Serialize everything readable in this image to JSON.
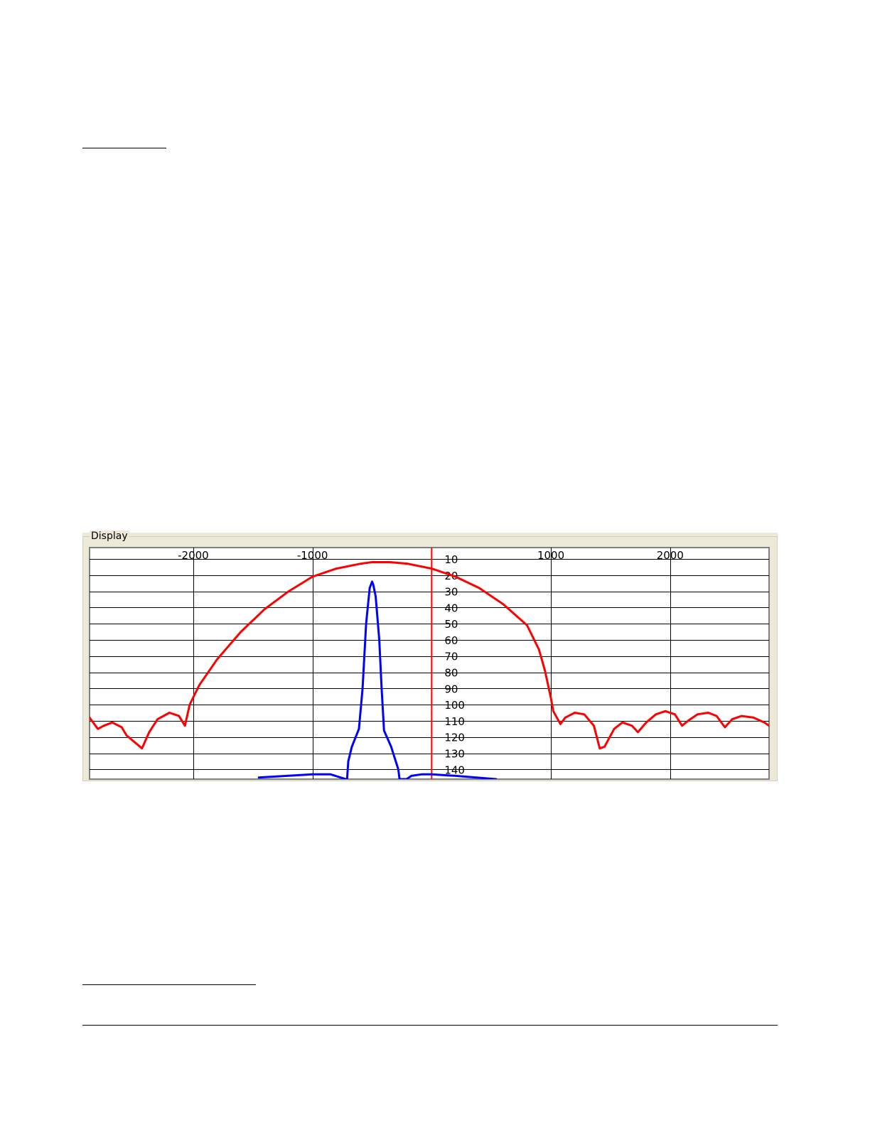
{
  "panel": {
    "legend": "Display"
  },
  "chart_data": {
    "type": "line",
    "title": "",
    "xlabel": "",
    "ylabel": "",
    "xlim": [
      -2870,
      2830
    ],
    "ylim": [
      3,
      146
    ],
    "y_inverted": true,
    "grid": true,
    "x_ticks": [
      -2000,
      -1000,
      1000,
      2000
    ],
    "x_tick_labels": [
      "-2000",
      "-1000",
      "1000",
      "2000"
    ],
    "y_ticks": [
      10,
      20,
      30,
      40,
      50,
      60,
      70,
      80,
      90,
      100,
      110,
      120,
      130,
      140
    ],
    "y_tick_labels": [
      "10",
      "20",
      "30",
      "40",
      "50",
      "60",
      "70",
      "80",
      "90",
      "100",
      "110",
      "120",
      "130",
      "140"
    ],
    "marker_x": 0,
    "colors": {
      "plot_background": "#ffffff",
      "grid": "#000000",
      "frame": "#808080",
      "panel": "#ece9d8",
      "marker": "#ff0000"
    },
    "series": [
      {
        "color": "#ff0000",
        "points": [
          [
            -2870,
            108
          ],
          [
            -2800,
            115
          ],
          [
            -2750,
            113
          ],
          [
            -2680,
            111
          ],
          [
            -2600,
            114
          ],
          [
            -2560,
            119
          ],
          [
            -2430,
            127
          ],
          [
            -2370,
            117
          ],
          [
            -2300,
            109
          ],
          [
            -2200,
            105
          ],
          [
            -2120,
            107
          ],
          [
            -2070,
            113
          ],
          [
            -2030,
            100
          ],
          [
            -1950,
            88
          ],
          [
            -1800,
            72
          ],
          [
            -1600,
            55
          ],
          [
            -1400,
            41
          ],
          [
            -1200,
            30
          ],
          [
            -1000,
            21
          ],
          [
            -800,
            16
          ],
          [
            -600,
            13
          ],
          [
            -500,
            12
          ],
          [
            -350,
            12
          ],
          [
            -200,
            13
          ],
          [
            0,
            16
          ],
          [
            200,
            21
          ],
          [
            400,
            28
          ],
          [
            600,
            38
          ],
          [
            800,
            51
          ],
          [
            900,
            66
          ],
          [
            950,
            79
          ],
          [
            1000,
            96
          ],
          [
            1020,
            104
          ],
          [
            1080,
            112
          ],
          [
            1120,
            108
          ],
          [
            1200,
            105
          ],
          [
            1280,
            106
          ],
          [
            1360,
            113
          ],
          [
            1410,
            127
          ],
          [
            1450,
            126
          ],
          [
            1530,
            115
          ],
          [
            1600,
            111
          ],
          [
            1680,
            113
          ],
          [
            1730,
            117
          ],
          [
            1800,
            111
          ],
          [
            1880,
            106
          ],
          [
            1960,
            104
          ],
          [
            2040,
            106
          ],
          [
            2100,
            113
          ],
          [
            2150,
            110
          ],
          [
            2230,
            106
          ],
          [
            2320,
            105
          ],
          [
            2390,
            107
          ],
          [
            2460,
            114
          ],
          [
            2520,
            109
          ],
          [
            2600,
            107
          ],
          [
            2700,
            108
          ],
          [
            2790,
            111
          ],
          [
            2830,
            113
          ]
        ]
      },
      {
        "color": "#0000ff",
        "points": [
          [
            -1450,
            145
          ],
          [
            -1000,
            143
          ],
          [
            -850,
            143
          ],
          [
            -720,
            146
          ],
          [
            -710,
            146
          ],
          [
            -700,
            135
          ],
          [
            -670,
            126
          ],
          [
            -610,
            115
          ],
          [
            -580,
            90
          ],
          [
            -550,
            50
          ],
          [
            -520,
            28
          ],
          [
            -500,
            24
          ],
          [
            -490,
            26
          ],
          [
            -470,
            33
          ],
          [
            -440,
            60
          ],
          [
            -420,
            90
          ],
          [
            -400,
            116
          ],
          [
            -340,
            126
          ],
          [
            -280,
            140
          ],
          [
            -270,
            146
          ],
          [
            -210,
            146
          ],
          [
            -170,
            144
          ],
          [
            -80,
            143
          ],
          [
            0,
            143
          ],
          [
            200,
            144
          ],
          [
            540,
            146
          ]
        ]
      }
    ]
  }
}
